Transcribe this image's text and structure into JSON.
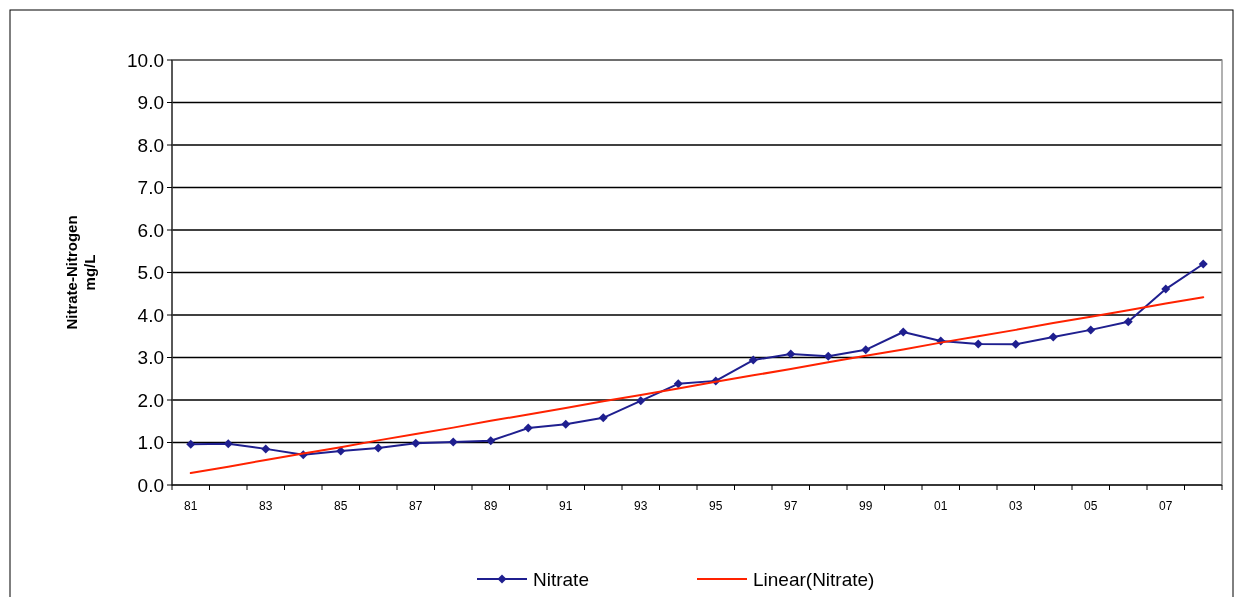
{
  "chart_data": {
    "type": "line",
    "ylabel": "Nitrate-Nitrogen\nmg/L",
    "categories": [
      "81",
      null,
      "83",
      null,
      "85",
      null,
      "87",
      null,
      "89",
      null,
      "91",
      null,
      "93",
      null,
      "95",
      null,
      "97",
      null,
      "99",
      null,
      "01",
      null,
      "03",
      null,
      "05",
      null,
      "07",
      null
    ],
    "ylim": [
      0,
      10
    ],
    "yticks": [
      {
        "value": 0,
        "label": "0.0"
      },
      {
        "value": 1,
        "label": "1.0"
      },
      {
        "value": 2,
        "label": "2.0"
      },
      {
        "value": 3,
        "label": "3.0"
      },
      {
        "value": 4,
        "label": "4.0"
      },
      {
        "value": 5,
        "label": "5.0"
      },
      {
        "value": 6,
        "label": "6.0"
      },
      {
        "value": 7,
        "label": "7.0"
      },
      {
        "value": 8,
        "label": "8.0"
      },
      {
        "value": 9,
        "label": "9.0"
      },
      {
        "value": 10,
        "label": "10.0"
      }
    ],
    "grid": "y",
    "legend": "bottom",
    "marker": "diamond",
    "series": [
      {
        "name": "Nitrate",
        "color": "#1f1f8f",
        "values": [
          0.96,
          0.97,
          0.85,
          0.71,
          0.8,
          0.87,
          0.98,
          1.01,
          1.04,
          1.34,
          1.43,
          1.58,
          1.98,
          2.38,
          2.45,
          2.94,
          3.08,
          3.03,
          3.18,
          3.6,
          3.39,
          3.32,
          3.31,
          3.48,
          3.65,
          3.84,
          4.61,
          5.2
        ]
      },
      {
        "name": "Linear(Nitrate)",
        "color": "#ff2200",
        "marker": "none",
        "values": [
          0.28,
          0.43,
          0.59,
          0.74,
          0.89,
          1.05,
          1.2,
          1.35,
          1.51,
          1.66,
          1.81,
          1.97,
          2.12,
          2.27,
          2.43,
          2.58,
          2.73,
          2.89,
          3.04,
          3.19,
          3.35,
          3.5,
          3.65,
          3.81,
          3.96,
          4.11,
          4.27,
          4.42
        ]
      }
    ]
  }
}
